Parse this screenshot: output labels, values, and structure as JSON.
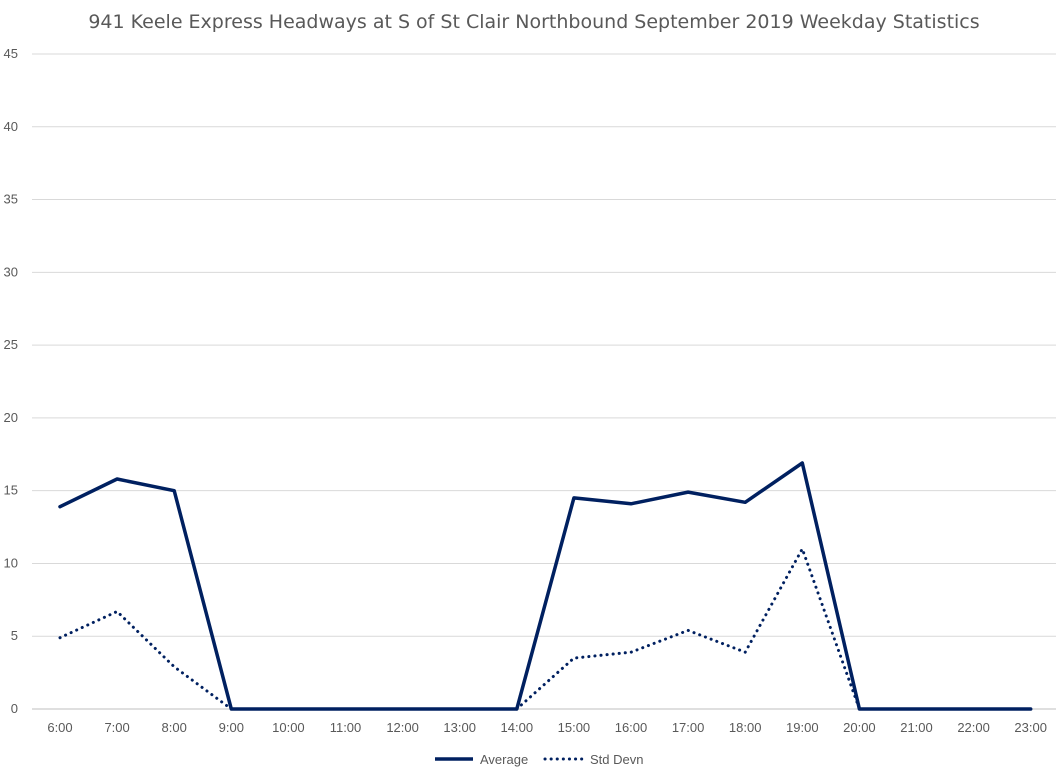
{
  "chart_data": {
    "type": "line",
    "title": "941 Keele Express Headways at S of St Clair Northbound September 2019 Weekday Statistics",
    "xlabel": "",
    "ylabel": "",
    "categories": [
      "6:00",
      "7:00",
      "8:00",
      "9:00",
      "10:00",
      "11:00",
      "12:00",
      "13:00",
      "14:00",
      "15:00",
      "16:00",
      "17:00",
      "18:00",
      "19:00",
      "20:00",
      "21:00",
      "22:00",
      "23:00"
    ],
    "ylim": [
      0,
      45
    ],
    "yticks": [
      "0",
      "5",
      "10",
      "15",
      "20",
      "25",
      "30",
      "35",
      "40",
      "45"
    ],
    "grid": true,
    "legend": "bottom",
    "series": [
      {
        "name": "Average",
        "style": "solid",
        "color": "#002060",
        "values": [
          13.9,
          15.8,
          15.0,
          0,
          0,
          0,
          0,
          0,
          0,
          14.5,
          14.1,
          14.9,
          14.2,
          16.9,
          0,
          0,
          0,
          0
        ]
      },
      {
        "name": "Std Devn",
        "style": "dotted",
        "color": "#002060",
        "values": [
          4.9,
          6.7,
          2.9,
          0,
          null,
          null,
          null,
          null,
          0,
          3.5,
          3.9,
          5.4,
          3.9,
          11.0,
          0,
          null,
          null,
          null
        ]
      }
    ]
  }
}
